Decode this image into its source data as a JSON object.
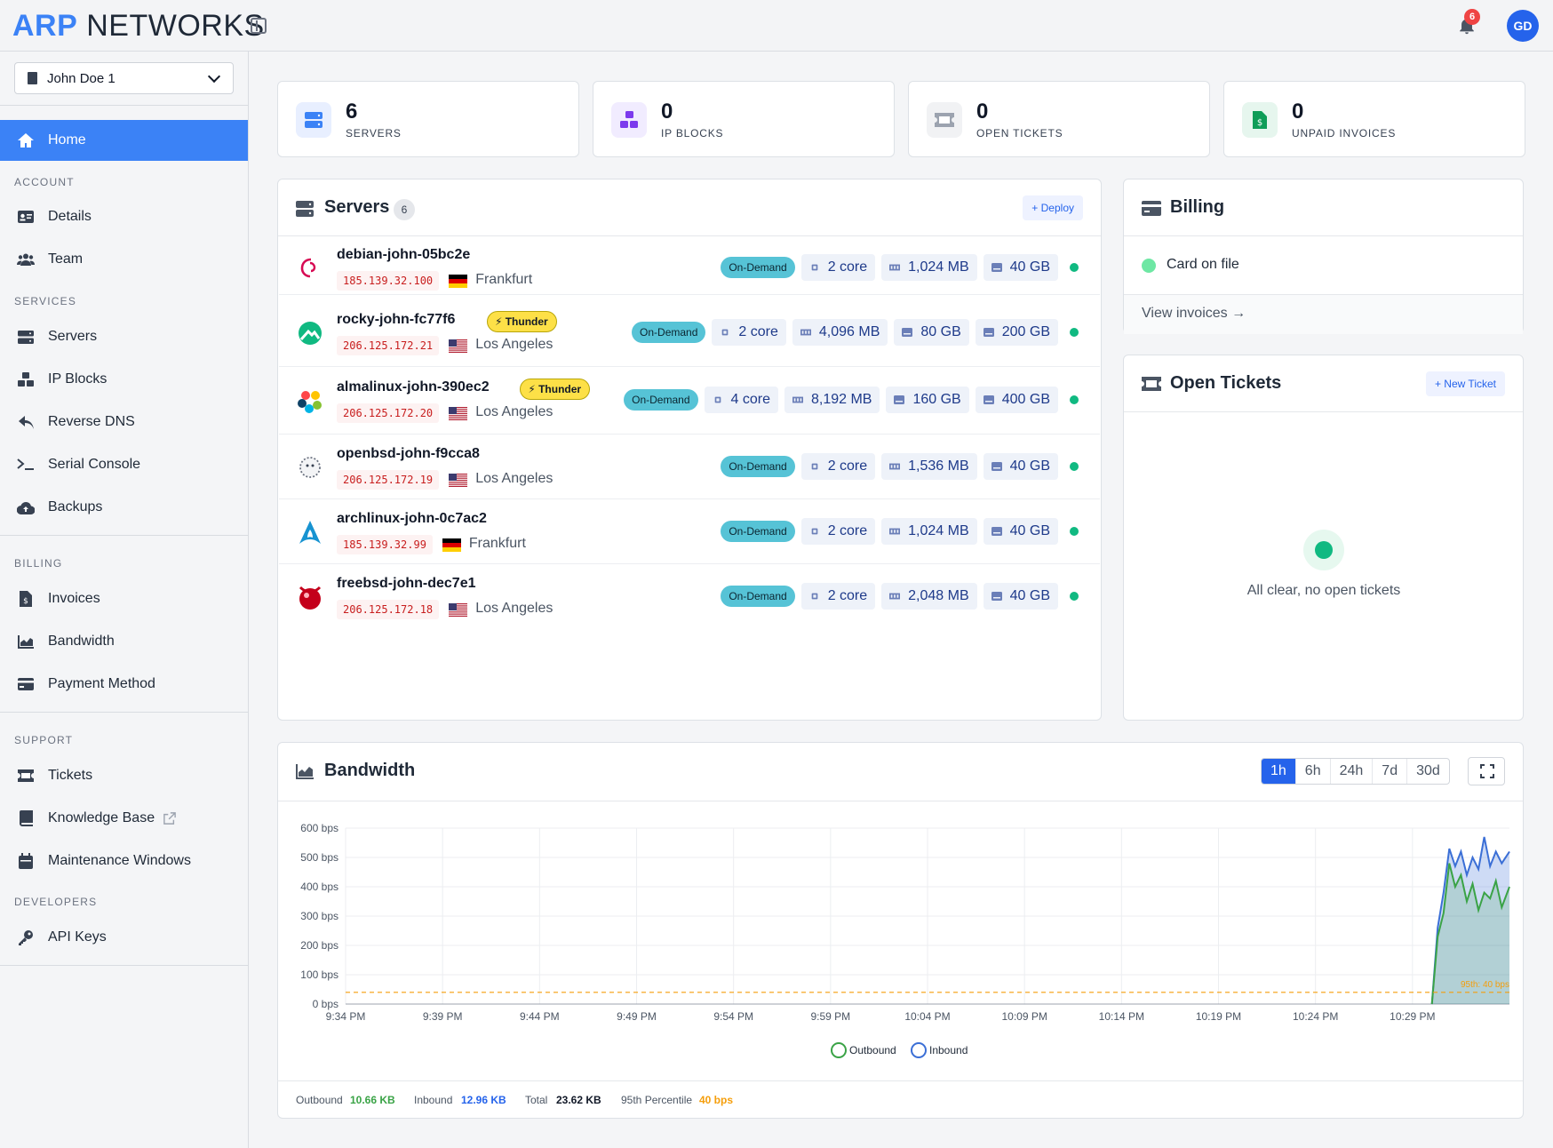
{
  "header": {
    "logo_accent": "ARP",
    "logo_rest": "NETWORKS",
    "notification_count": "6",
    "avatar_initials": "GD"
  },
  "sidebar": {
    "org_selector": "John Doe 1",
    "home": "Home",
    "sections": {
      "account": "ACCOUNT",
      "services": "SERVICES",
      "billing": "BILLING",
      "support": "SUPPORT",
      "developers": "DEVELOPERS"
    },
    "items": {
      "details": "Details",
      "team": "Team",
      "servers": "Servers",
      "ip_blocks": "IP Blocks",
      "reverse_dns": "Reverse DNS",
      "serial_console": "Serial Console",
      "backups": "Backups",
      "invoices": "Invoices",
      "bandwidth": "Bandwidth",
      "payment_method": "Payment Method",
      "tickets": "Tickets",
      "knowledge_base": "Knowledge Base",
      "maintenance_windows": "Maintenance Windows",
      "api_keys": "API Keys"
    }
  },
  "stats": [
    {
      "value": "6",
      "label": "SERVERS"
    },
    {
      "value": "0",
      "label": "IP BLOCKS"
    },
    {
      "value": "0",
      "label": "OPEN TICKETS"
    },
    {
      "value": "0",
      "label": "UNPAID INVOICES"
    }
  ],
  "servers_card": {
    "title": "Servers",
    "count": "6",
    "deploy_label": "+ Deploy",
    "rows": [
      {
        "name": "debian-john-05bc2e",
        "ip": "185.139.32.100",
        "location": "Frankfurt",
        "flag": "de",
        "thunder": "",
        "plan": "On-Demand",
        "specs": [
          "2 core",
          "1,024 MB",
          "40 GB"
        ]
      },
      {
        "name": "rocky-john-fc77f6",
        "ip": "206.125.172.21",
        "location": "Los Angeles",
        "flag": "us",
        "thunder": "Thunder",
        "plan": "On-Demand",
        "specs": [
          "2 core",
          "4,096 MB",
          "80 GB",
          "200 GB"
        ]
      },
      {
        "name": "almalinux-john-390ec2",
        "ip": "206.125.172.20",
        "location": "Los Angeles",
        "flag": "us",
        "thunder": "Thunder",
        "plan": "On-Demand",
        "specs": [
          "4 core",
          "8,192 MB",
          "160 GB",
          "400 GB"
        ]
      },
      {
        "name": "openbsd-john-f9cca8",
        "ip": "206.125.172.19",
        "location": "Los Angeles",
        "flag": "us",
        "thunder": "",
        "plan": "On-Demand",
        "specs": [
          "2 core",
          "1,536 MB",
          "40 GB"
        ]
      },
      {
        "name": "archlinux-john-0c7ac2",
        "ip": "185.139.32.99",
        "location": "Frankfurt",
        "flag": "de",
        "thunder": "",
        "plan": "On-Demand",
        "specs": [
          "2 core",
          "1,024 MB",
          "40 GB"
        ]
      },
      {
        "name": "freebsd-john-dec7e1",
        "ip": "206.125.172.18",
        "location": "Los Angeles",
        "flag": "us",
        "thunder": "",
        "plan": "On-Demand",
        "specs": [
          "2 core",
          "2,048 MB",
          "40 GB"
        ]
      }
    ]
  },
  "billing_card": {
    "title": "Billing",
    "status": "Card on file",
    "view_invoices": "View invoices →"
  },
  "tickets_card": {
    "title": "Open Tickets",
    "new_ticket": "+ New Ticket",
    "empty": "All clear, no open tickets"
  },
  "bandwidth_card": {
    "title": "Bandwidth",
    "ranges": [
      "1h",
      "6h",
      "24h",
      "7d",
      "30d"
    ],
    "active_range": "1h",
    "footer": {
      "outbound_label": "Outbound",
      "outbound_value": "10.66 KB",
      "inbound_label": "Inbound",
      "inbound_value": "12.96 KB",
      "total_label": "Total",
      "total_value": "23.62 KB",
      "p95_label": "95th Percentile",
      "p95_value": "40 bps"
    }
  },
  "chart_data": {
    "type": "area",
    "y_ticks": [
      "600 bps",
      "500 bps",
      "400 bps",
      "300 bps",
      "200 bps",
      "100 bps",
      "0 bps"
    ],
    "ylim": [
      0,
      600
    ],
    "x_ticks": [
      "9:34 PM",
      "9:39 PM",
      "9:44 PM",
      "9:49 PM",
      "9:54 PM",
      "9:59 PM",
      "10:04 PM",
      "10:09 PM",
      "10:14 PM",
      "10:19 PM",
      "10:24 PM",
      "10:29 PM"
    ],
    "x_minutes": [
      0,
      60
    ],
    "reference_line": {
      "label": "95th: 40 bps",
      "value": 40,
      "color": "#f59e0b"
    },
    "legend_position": "bottom",
    "series": [
      {
        "name": "Outbound",
        "color": "#3aa346",
        "x": [
          56.0,
          56.3,
          56.6,
          56.9,
          57.2,
          57.5,
          57.8,
          58.1,
          58.4,
          58.7,
          59.0,
          59.3,
          59.6,
          60.0
        ],
        "values": [
          0,
          230,
          310,
          480,
          400,
          440,
          350,
          410,
          320,
          380,
          360,
          420,
          330,
          400
        ]
      },
      {
        "name": "Inbound",
        "color": "#3b6fd6",
        "x": [
          56.0,
          56.3,
          56.6,
          56.9,
          57.2,
          57.5,
          57.8,
          58.1,
          58.4,
          58.7,
          59.0,
          59.3,
          59.6,
          60.0
        ],
        "values": [
          0,
          260,
          380,
          530,
          470,
          520,
          440,
          500,
          460,
          570,
          470,
          520,
          480,
          520
        ]
      }
    ]
  }
}
